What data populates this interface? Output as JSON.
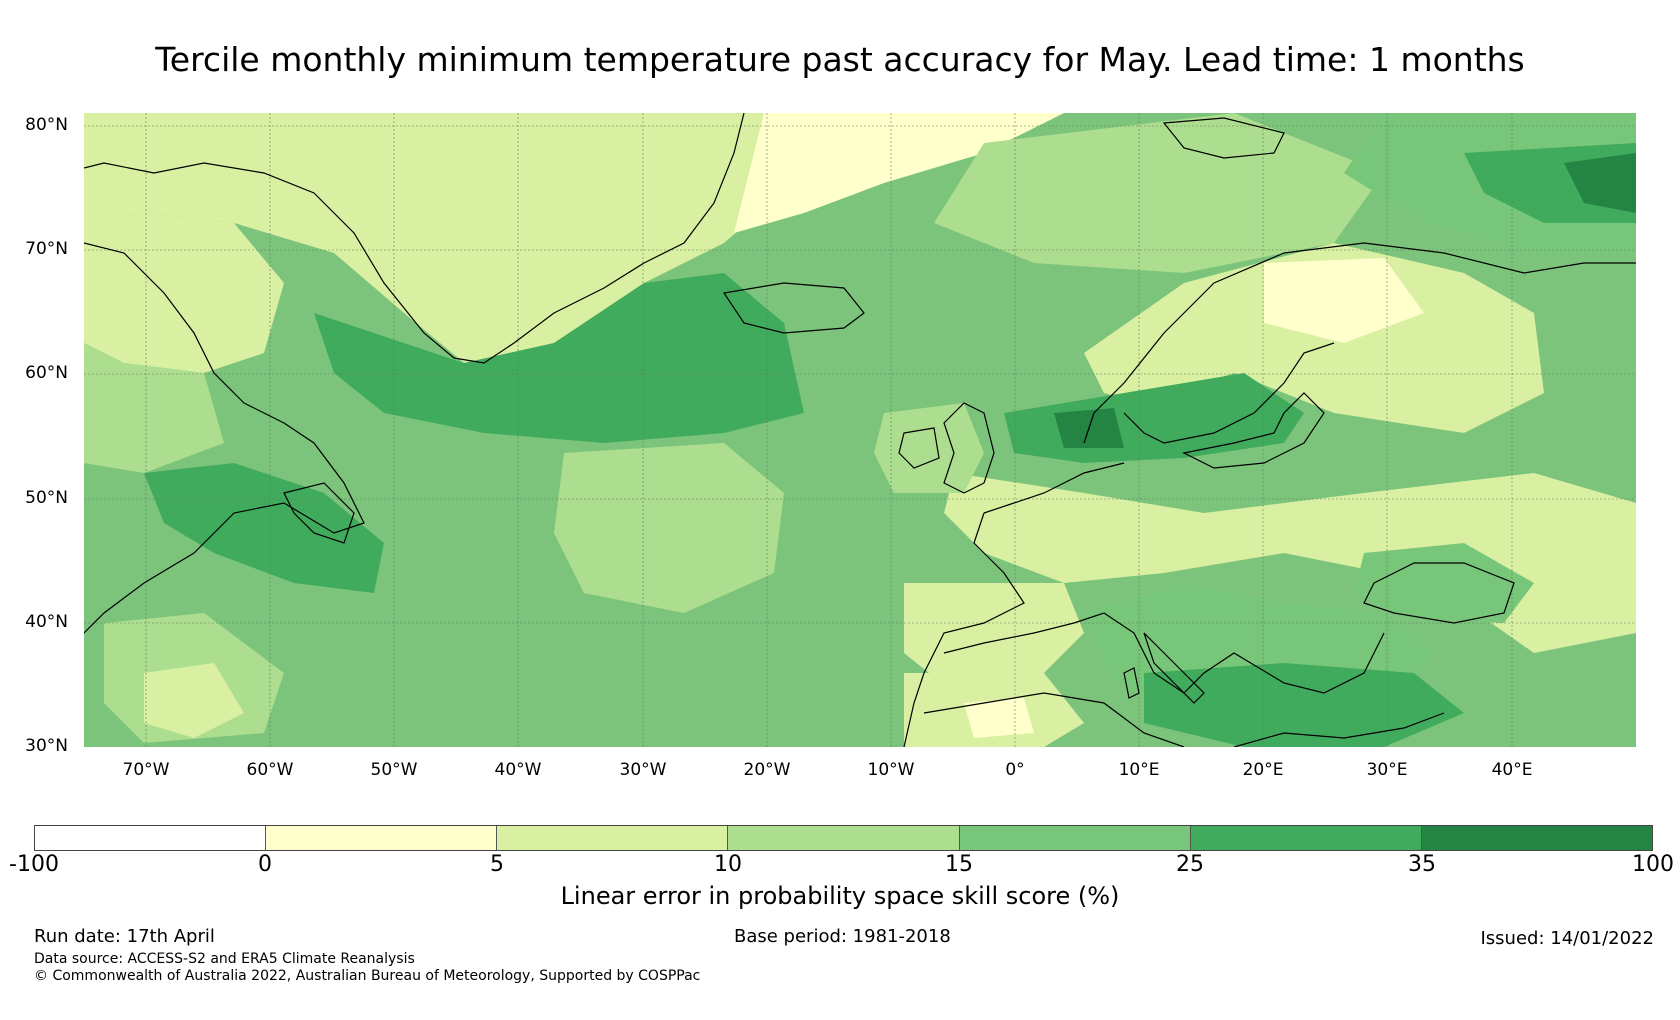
{
  "title": "Tercile monthly minimum temperature past accuracy for May. Lead time: 1 months",
  "map": {
    "region": "North Atlantic and Europe",
    "lon_range": [
      -75,
      50
    ],
    "lat_range": [
      30,
      81
    ],
    "lat_labels": [
      "80°N",
      "70°N",
      "60°N",
      "50°N",
      "40°N",
      "30°N"
    ],
    "lon_labels": [
      "70°W",
      "60°W",
      "50°W",
      "40°W",
      "30°W",
      "20°W",
      "10°W",
      "0°",
      "10°E",
      "20°E",
      "30°E",
      "40°E"
    ],
    "background_color": "#7cc47b"
  },
  "colorbar": {
    "ticks": [
      "-100",
      "0",
      "5",
      "10",
      "15",
      "25",
      "35",
      "100"
    ],
    "colors": [
      "#ffffff",
      "#ffffcc",
      "#d9f0a3",
      "#addd8e",
      "#78c679",
      "#41ab5d",
      "#238443"
    ],
    "label": "Linear error in probability space skill score (%)"
  },
  "footer": {
    "run_date": "Run date: 17th April",
    "base_period": "Base period: 1981-2018",
    "issued": "Issued: 14/01/2022",
    "data_source": "Data source: ACCESS-S2 and ERA5 Climate Reanalysis",
    "copyright": "© Commonwealth of Australia 2022, Australian Bureau of Meteorology, Supported by COSPPac"
  }
}
